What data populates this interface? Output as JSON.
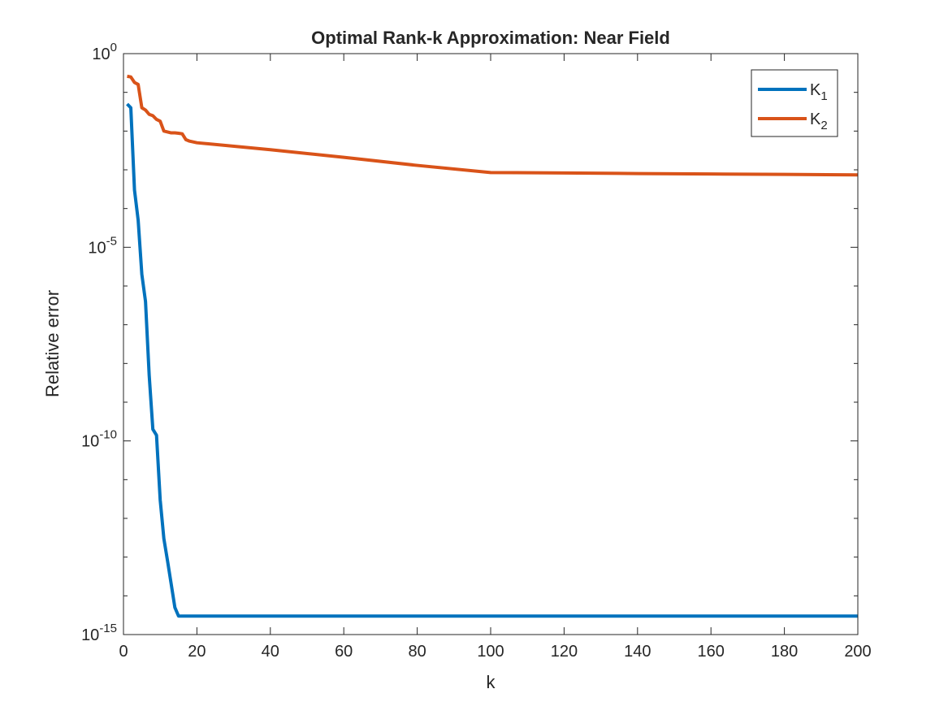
{
  "chart_data": {
    "type": "line",
    "title": "Optimal Rank-k Approximation: Near Field",
    "xlabel": "k",
    "ylabel": "Relative error",
    "xlim": [
      0,
      200
    ],
    "ylim": [
      1e-15,
      1
    ],
    "yscale": "log",
    "xticks": [
      0,
      20,
      40,
      60,
      80,
      100,
      120,
      140,
      160,
      180,
      200
    ],
    "yticks": [
      {
        "value": 1e-15,
        "base": "10",
        "exp": "-15"
      },
      {
        "value": 1e-10,
        "base": "10",
        "exp": "-10"
      },
      {
        "value": 1e-05,
        "base": "10",
        "exp": "-5"
      },
      {
        "value": 1,
        "base": "10",
        "exp": "0"
      }
    ],
    "legend_position": "top-right",
    "series": [
      {
        "name": "K",
        "subscript": "1",
        "color": "#0072BD",
        "x": [
          1,
          2,
          3,
          4,
          5,
          6,
          7,
          8,
          9,
          10,
          11,
          12,
          13,
          14,
          15,
          16,
          17,
          20,
          40,
          60,
          80,
          100,
          120,
          140,
          160,
          180,
          200
        ],
        "y": [
          0.05,
          0.04,
          0.0003,
          5e-05,
          2e-06,
          4e-07,
          5e-09,
          2e-10,
          1.4e-10,
          3e-12,
          3e-13,
          8e-14,
          2e-14,
          5e-15,
          3e-15,
          3e-15,
          3e-15,
          3e-15,
          3e-15,
          3e-15,
          3e-15,
          3e-15,
          3e-15,
          3e-15,
          3e-15,
          3e-15,
          3e-15
        ]
      },
      {
        "name": "K",
        "subscript": "2",
        "color": "#D95319",
        "x": [
          1,
          2,
          3,
          4,
          5,
          6,
          7,
          8,
          9,
          10,
          11,
          12,
          13,
          14,
          15,
          16,
          17,
          18,
          20,
          40,
          60,
          80,
          100,
          120,
          140,
          160,
          180,
          200
        ],
        "y": [
          0.26,
          0.25,
          0.18,
          0.16,
          0.04,
          0.035,
          0.027,
          0.025,
          0.02,
          0.018,
          0.01,
          0.0095,
          0.009,
          0.009,
          0.0088,
          0.0085,
          0.006,
          0.0055,
          0.005,
          0.0033,
          0.0021,
          0.0013,
          0.00085,
          0.00083,
          0.0008,
          0.00078,
          0.00076,
          0.00074
        ]
      }
    ]
  }
}
